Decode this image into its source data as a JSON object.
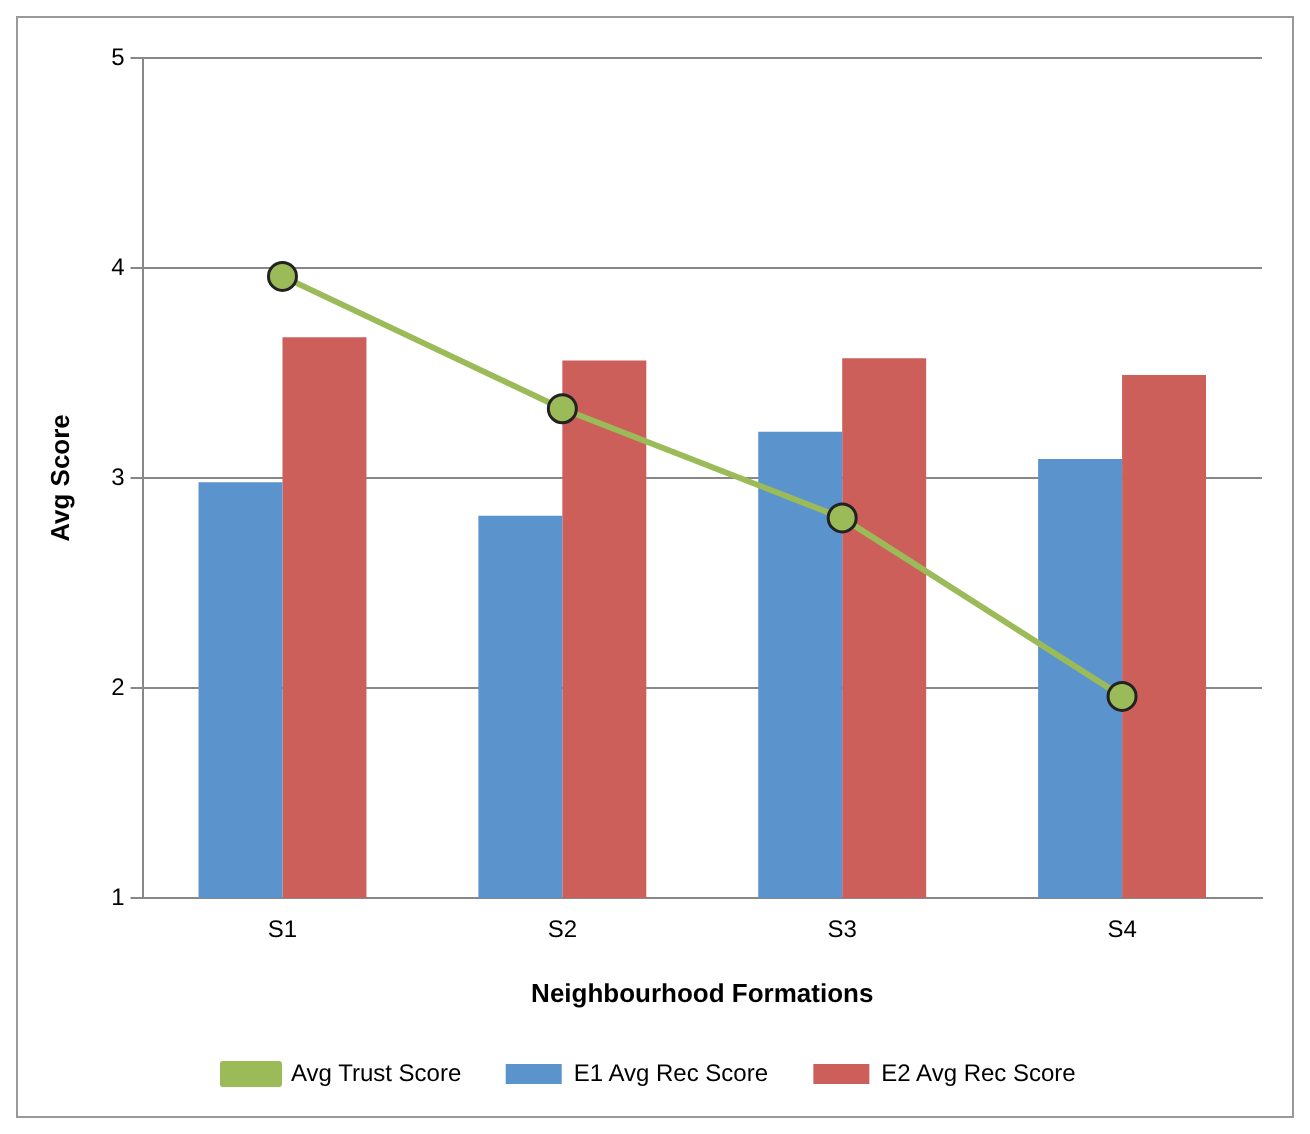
{
  "chart_data": {
    "type": "bar",
    "xlabel": "Neighbourhood Formations",
    "ylabel": "Avg Score",
    "categories": [
      "S1",
      "S2",
      "S3",
      "S4"
    ],
    "series": [
      {
        "name": "E1 Avg Rec Score",
        "color": "#5b93cc",
        "values": [
          2.98,
          2.82,
          3.22,
          3.09
        ]
      },
      {
        "name": "E2 Avg Rec Score",
        "color": "#cd5f5a",
        "values": [
          3.67,
          3.56,
          3.57,
          3.49
        ]
      },
      {
        "name": "Avg Trust Score",
        "type": "line",
        "color": "#9bbb59",
        "marker": "circle",
        "values": [
          3.96,
          3.33,
          2.81,
          1.96
        ]
      }
    ],
    "ylim": [
      1,
      5
    ],
    "yticks": [
      1,
      2,
      3,
      4,
      5
    ],
    "grid": "y",
    "legend": "bottom"
  }
}
